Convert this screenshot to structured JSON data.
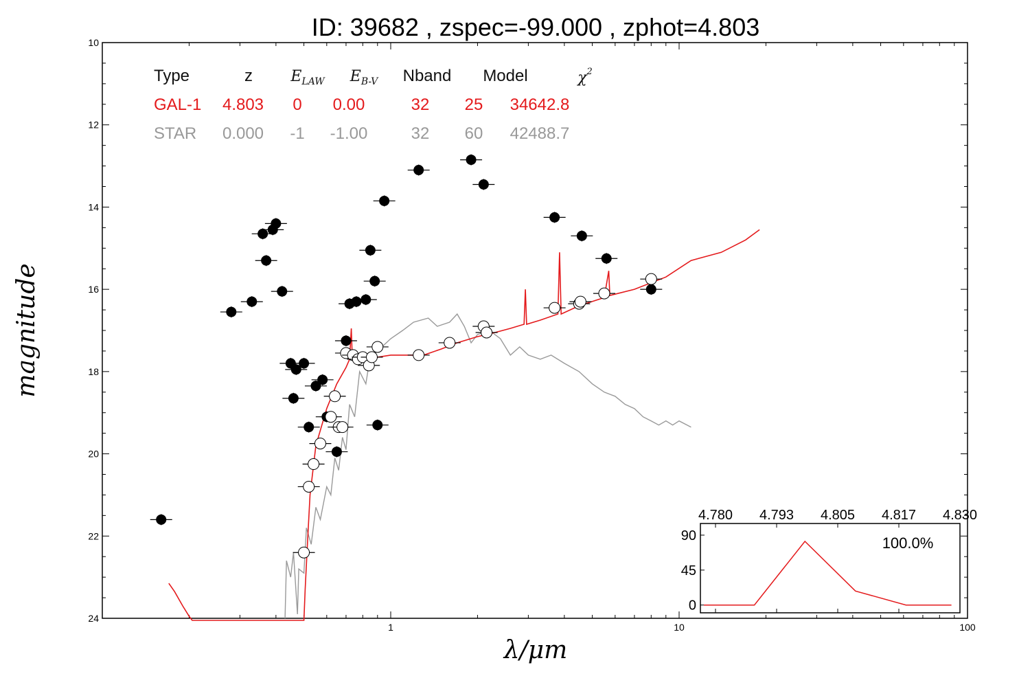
{
  "chart_data": [
    {
      "type": "scatter",
      "title": "ID:  39682 , zspec=-99.000 , zphot=4.803",
      "xlabel": "λ/μm",
      "ylabel": "magnitude",
      "xscale": "log",
      "xlim": [
        0.1,
        100
      ],
      "ylim": [
        24,
        10
      ],
      "x_ticks": [
        {
          "v": 1,
          "label": "1"
        },
        {
          "v": 10,
          "label": "10"
        },
        {
          "v": 100,
          "label": "100"
        }
      ],
      "y_ticks": [
        10,
        12,
        14,
        16,
        18,
        20,
        22,
        24
      ],
      "grid": false,
      "legend_table": {
        "headers": [
          "Type",
          "z",
          "E_LAW",
          "E_B-V",
          "Nband",
          "Model",
          "χ2"
        ],
        "rows": [
          {
            "cells": [
              "GAL-1",
              "4.803",
              "0",
              "0.00",
              "32",
              "25",
              "34642.8"
            ],
            "color": "#e41a1c"
          },
          {
            "cells": [
              "STAR",
              "0.000",
              "-1",
              "-1.00",
              "32",
              "60",
              "42488.7"
            ],
            "color": "#999999"
          }
        ]
      },
      "series": [
        {
          "name": "GAL-1",
          "kind": "line",
          "color": "#e41a1c",
          "points": [
            [
              0.17,
              23.15
            ],
            [
              0.178,
              23.35
            ],
            [
              0.19,
              23.7
            ],
            [
              0.2,
              23.95
            ],
            [
              0.205,
              24.05
            ],
            [
              0.5,
              24.05
            ],
            [
              0.505,
              23.3
            ],
            [
              0.51,
              22.7
            ],
            [
              0.515,
              22.1
            ],
            [
              0.525,
              21.0
            ],
            [
              0.55,
              19.8
            ],
            [
              0.6,
              18.9
            ],
            [
              0.65,
              18.3
            ],
            [
              0.7,
              17.9
            ],
            [
              0.72,
              17.7
            ],
            [
              0.73,
              16.95
            ],
            [
              0.735,
              17.55
            ],
            [
              0.76,
              17.65
            ],
            [
              0.8,
              17.7
            ],
            [
              0.9,
              17.65
            ],
            [
              1.0,
              17.6
            ],
            [
              1.1,
              17.6
            ],
            [
              1.3,
              17.6
            ],
            [
              1.5,
              17.45
            ],
            [
              1.7,
              17.3
            ],
            [
              2.0,
              17.15
            ],
            [
              2.3,
              17.05
            ],
            [
              2.6,
              16.95
            ],
            [
              2.9,
              16.85
            ],
            [
              2.93,
              16.0
            ],
            [
              2.96,
              16.85
            ],
            [
              3.3,
              16.75
            ],
            [
              3.8,
              16.6
            ],
            [
              3.85,
              15.1
            ],
            [
              3.9,
              16.6
            ],
            [
              4.5,
              16.4
            ],
            [
              5.5,
              16.2
            ],
            [
              5.7,
              15.55
            ],
            [
              5.75,
              16.15
            ],
            [
              7,
              16.0
            ],
            [
              9,
              15.7
            ],
            [
              11,
              15.3
            ],
            [
              14,
              15.1
            ],
            [
              17,
              14.8
            ],
            [
              19,
              14.55
            ]
          ]
        },
        {
          "name": "STAR",
          "kind": "line",
          "color": "#999999",
          "points": [
            [
              0.43,
              24.0
            ],
            [
              0.435,
              22.6
            ],
            [
              0.45,
              23.0
            ],
            [
              0.46,
              22.4
            ],
            [
              0.475,
              23.9
            ],
            [
              0.48,
              22.8
            ],
            [
              0.5,
              22.9
            ],
            [
              0.51,
              21.8
            ],
            [
              0.53,
              22.2
            ],
            [
              0.55,
              21.3
            ],
            [
              0.57,
              21.6
            ],
            [
              0.6,
              20.8
            ],
            [
              0.62,
              21.0
            ],
            [
              0.64,
              20.1
            ],
            [
              0.66,
              20.4
            ],
            [
              0.68,
              19.6
            ],
            [
              0.7,
              19.9
            ],
            [
              0.72,
              18.8
            ],
            [
              0.75,
              19.1
            ],
            [
              0.78,
              18.0
            ],
            [
              0.82,
              18.3
            ],
            [
              0.85,
              17.6
            ],
            [
              0.9,
              17.5
            ],
            [
              1.0,
              17.2
            ],
            [
              1.1,
              17.0
            ],
            [
              1.2,
              16.8
            ],
            [
              1.35,
              16.7
            ],
            [
              1.45,
              16.9
            ],
            [
              1.6,
              16.8
            ],
            [
              1.7,
              16.6
            ],
            [
              1.8,
              16.9
            ],
            [
              1.9,
              17.3
            ],
            [
              2.0,
              17.1
            ],
            [
              2.2,
              17.0
            ],
            [
              2.4,
              17.2
            ],
            [
              2.6,
              17.6
            ],
            [
              2.8,
              17.4
            ],
            [
              3.0,
              17.6
            ],
            [
              3.3,
              17.7
            ],
            [
              3.6,
              17.6
            ],
            [
              4.0,
              17.8
            ],
            [
              4.5,
              18.0
            ],
            [
              5.0,
              18.3
            ],
            [
              5.5,
              18.5
            ],
            [
              6.0,
              18.6
            ],
            [
              6.5,
              18.8
            ],
            [
              7.0,
              18.9
            ],
            [
              7.5,
              19.1
            ],
            [
              8.0,
              19.2
            ],
            [
              8.5,
              19.3
            ],
            [
              9.0,
              19.2
            ],
            [
              9.5,
              19.3
            ],
            [
              10.0,
              19.2
            ],
            [
              11.0,
              19.35
            ]
          ]
        },
        {
          "name": "observed",
          "kind": "points",
          "color": "#000000",
          "points": [
            [
              0.16,
              21.6
            ],
            [
              0.28,
              16.55
            ],
            [
              0.33,
              16.3
            ],
            [
              0.36,
              14.65
            ],
            [
              0.37,
              15.3
            ],
            [
              0.39,
              14.55
            ],
            [
              0.4,
              14.4
            ],
            [
              0.42,
              16.05
            ],
            [
              0.45,
              17.8
            ],
            [
              0.47,
              17.95
            ],
            [
              0.5,
              17.8
            ],
            [
              0.46,
              18.65
            ],
            [
              0.52,
              19.35
            ],
            [
              0.55,
              18.35
            ],
            [
              0.58,
              18.2
            ],
            [
              0.6,
              19.1
            ],
            [
              0.65,
              19.95
            ],
            [
              0.7,
              17.25
            ],
            [
              0.72,
              16.35
            ],
            [
              0.76,
              16.3
            ],
            [
              0.82,
              16.25
            ],
            [
              0.85,
              15.05
            ],
            [
              0.88,
              15.8
            ],
            [
              0.9,
              19.3
            ],
            [
              0.95,
              13.85
            ],
            [
              1.25,
              13.1
            ],
            [
              1.9,
              12.85
            ],
            [
              2.1,
              13.45
            ],
            [
              3.7,
              14.25
            ],
            [
              4.6,
              14.7
            ],
            [
              5.6,
              15.25
            ],
            [
              8.0,
              16.0
            ]
          ]
        },
        {
          "name": "model",
          "kind": "points",
          "color": "#ffffff",
          "points": [
            [
              0.5,
              22.4
            ],
            [
              0.52,
              20.8
            ],
            [
              0.54,
              20.25
            ],
            [
              0.57,
              19.75
            ],
            [
              0.62,
              19.1
            ],
            [
              0.64,
              18.6
            ],
            [
              0.66,
              19.35
            ],
            [
              0.68,
              19.35
            ],
            [
              0.7,
              17.55
            ],
            [
              0.74,
              17.6
            ],
            [
              0.77,
              17.7
            ],
            [
              0.8,
              17.65
            ],
            [
              0.84,
              17.85
            ],
            [
              0.86,
              17.65
            ],
            [
              0.9,
              17.4
            ],
            [
              1.25,
              17.6
            ],
            [
              1.6,
              17.3
            ],
            [
              2.1,
              16.9
            ],
            [
              2.15,
              17.05
            ],
            [
              3.7,
              16.45
            ],
            [
              4.5,
              16.35
            ],
            [
              4.55,
              16.3
            ],
            [
              5.5,
              16.1
            ],
            [
              8.0,
              15.75
            ]
          ]
        }
      ]
    },
    {
      "type": "line",
      "title": "",
      "x_ticks": [
        "4.780",
        "4.793",
        "4.805",
        "4.817",
        "4.830"
      ],
      "xlim": [
        4.78,
        4.83
      ],
      "y_ticks": [
        0,
        45,
        90
      ],
      "ylim": [
        -10,
        105
      ],
      "annotation": "100.0%",
      "series": [
        {
          "color": "#e41a1c",
          "x": [
            4.78,
            4.79,
            4.8,
            4.81,
            4.82,
            4.829
          ],
          "y": [
            0,
            0,
            82,
            18,
            0,
            0
          ]
        }
      ]
    }
  ]
}
